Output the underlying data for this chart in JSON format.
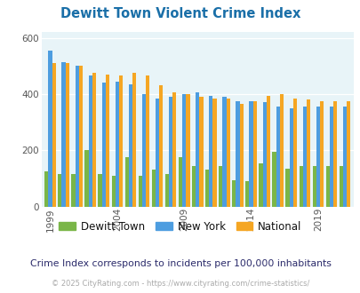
{
  "title": "Dewitt Town Violent Crime Index",
  "subtitle": "Crime Index corresponds to incidents per 100,000 inhabitants",
  "footer": "© 2025 CityRating.com - https://www.cityrating.com/crime-statistics/",
  "years": [
    1999,
    2000,
    2001,
    2002,
    2003,
    2004,
    2005,
    2006,
    2007,
    2008,
    2009,
    2010,
    2011,
    2012,
    2013,
    2014,
    2015,
    2016,
    2017,
    2018,
    2019,
    2020,
    2021
  ],
  "dewitt": [
    125,
    115,
    115,
    200,
    115,
    110,
    175,
    110,
    130,
    115,
    175,
    145,
    130,
    145,
    95,
    90,
    155,
    195,
    135,
    145,
    145,
    145,
    145
  ],
  "newyork": [
    555,
    515,
    500,
    465,
    440,
    445,
    435,
    400,
    385,
    390,
    400,
    405,
    395,
    390,
    375,
    375,
    370,
    355,
    350,
    355,
    355,
    355,
    355
  ],
  "national": [
    510,
    510,
    500,
    475,
    470,
    465,
    475,
    465,
    430,
    405,
    400,
    390,
    385,
    385,
    365,
    375,
    395,
    400,
    385,
    380,
    375,
    375,
    375
  ],
  "dewitt_color": "#7ab648",
  "newyork_color": "#4d9de0",
  "national_color": "#f5a623",
  "bg_color": "#e8f4f8",
  "title_color": "#1a6fa8",
  "subtitle_color": "#2a2a6a",
  "footer_color": "#aaaaaa",
  "ylim": [
    0,
    620
  ],
  "yticks": [
    0,
    200,
    400,
    600
  ],
  "bar_width": 0.28,
  "grid_color": "#ffffff",
  "label_years": [
    1999,
    2004,
    2009,
    2014,
    2019
  ]
}
